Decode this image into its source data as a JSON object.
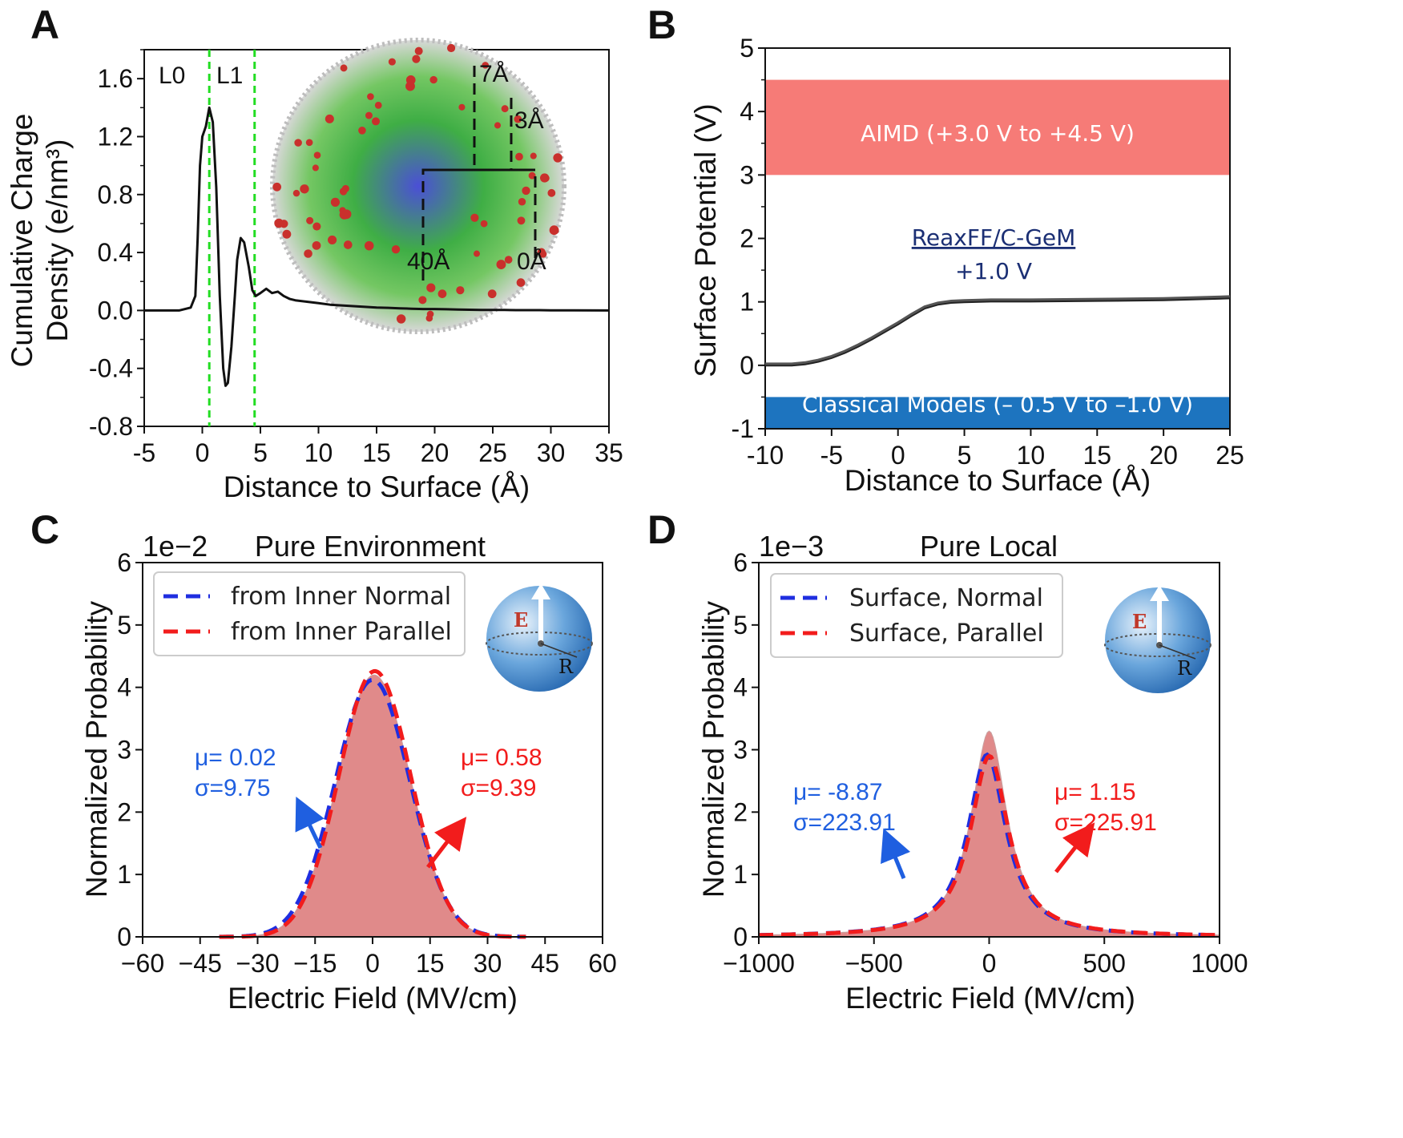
{
  "colors": {
    "blue": "#1f2ee0",
    "red": "#f21c1c",
    "green": "#22dd22",
    "fill_red": "#e08a8a",
    "aimd_band": "#f67b77",
    "classical_band": "#1d74bf",
    "reax_text": "#1b2f74"
  },
  "panels": {
    "A": {
      "letter": "A",
      "region_labels": [
        "L0",
        "L1"
      ],
      "inset_labels": [
        "7Å",
        "3Å",
        "40Å",
        "0Å"
      ],
      "inset_icon": "nanodroplet-molecular-render"
    },
    "B": {
      "letter": "B",
      "band_labels": [
        "AIMD (+3.0 V to +4.5 V)",
        "Classical Models (– 0.5 V to –1.0 V)"
      ],
      "reax_label": [
        "ReaxFF/C-GeM",
        "+1.0 V"
      ]
    },
    "C": {
      "letter": "C",
      "scale": "1e−2",
      "icon": "sphere-field-icon",
      "sphere_labels": [
        "E",
        "R"
      ]
    },
    "D": {
      "letter": "D",
      "scale": "1e−3",
      "icon": "sphere-field-icon",
      "sphere_labels": [
        "E",
        "R"
      ]
    }
  },
  "chart_data": [
    {
      "panel": "A",
      "type": "line",
      "title": "",
      "xlabel": "Distance to Surface (Å)",
      "ylabel": [
        "Cumulative Charge",
        "Density (e/nm³)"
      ],
      "xlim": [
        -5,
        35
      ],
      "ylim": [
        -0.8,
        1.8
      ],
      "xticks": [
        "-5",
        "0",
        "5",
        "10",
        "15",
        "20",
        "25",
        "30",
        "35"
      ],
      "yticks": [
        "-0.8",
        "-0.4",
        "0.0",
        "0.4",
        "0.8",
        "1.2",
        "1.6"
      ],
      "vlines": [
        0.6,
        4.5
      ],
      "series": [
        {
          "name": "Cumulative Charge Density",
          "x": [
            -5,
            -2,
            -1,
            -0.6,
            -0.4,
            -0.2,
            0,
            0.3,
            0.6,
            0.9,
            1.2,
            1.5,
            1.8,
            2.0,
            2.2,
            2.5,
            2.8,
            3.0,
            3.3,
            3.6,
            4.0,
            4.3,
            4.6,
            5.0,
            5.5,
            6.0,
            6.5,
            7.0,
            7.5,
            8,
            9,
            10,
            11,
            12,
            13,
            14,
            15,
            16,
            17,
            18,
            19,
            20,
            21,
            22,
            23,
            24,
            25,
            26,
            27,
            28,
            29,
            30,
            32,
            35
          ],
          "y": [
            0.0,
            0.0,
            0.02,
            0.1,
            0.5,
            1.0,
            1.2,
            1.27,
            1.4,
            1.3,
            0.85,
            0.1,
            -0.4,
            -0.52,
            -0.5,
            -0.25,
            0.1,
            0.35,
            0.5,
            0.47,
            0.3,
            0.14,
            0.1,
            0.12,
            0.15,
            0.12,
            0.13,
            0.1,
            0.08,
            0.07,
            0.06,
            0.05,
            0.04,
            0.035,
            0.03,
            0.025,
            0.02,
            0.018,
            0.015,
            0.012,
            0.01,
            0.01,
            0.008,
            0.006,
            0.005,
            0.004,
            0.003,
            0.003,
            0.002,
            0.002,
            0.002,
            0.001,
            0.001,
            0.0
          ]
        }
      ]
    },
    {
      "panel": "B",
      "type": "line",
      "title": "",
      "xlabel": "Distance to Surface (Å)",
      "ylabel": "Surface Potential (V)",
      "xlim": [
        -10,
        25
      ],
      "ylim": [
        -1,
        5
      ],
      "xticks": [
        "-10",
        "-5",
        "0",
        "5",
        "10",
        "15",
        "20",
        "25"
      ],
      "yticks": [
        "-1",
        "0",
        "1",
        "2",
        "3",
        "4",
        "5"
      ],
      "bands": [
        {
          "name": "AIMD (+3.0 V to +4.5 V)",
          "ymin": 3.0,
          "ymax": 4.5
        },
        {
          "name": "Classical Models (– 0.5 V to –1.0 V)",
          "ymin": -1.0,
          "ymax": -0.5
        }
      ],
      "series": [
        {
          "name": "ReaxFF/C-GeM",
          "x": [
            -10,
            -8,
            -7,
            -6,
            -5,
            -4,
            -3,
            -2,
            -1,
            0,
            1,
            2,
            3,
            4,
            5,
            7,
            10,
            15,
            20,
            25
          ],
          "y": [
            0.0,
            0.0,
            0.02,
            0.06,
            0.12,
            0.2,
            0.3,
            0.41,
            0.53,
            0.65,
            0.78,
            0.9,
            0.96,
            0.99,
            1.0,
            1.01,
            1.01,
            1.02,
            1.03,
            1.06
          ]
        }
      ]
    },
    {
      "panel": "C",
      "type": "area",
      "title": "Pure Environment",
      "xlabel": "Electric Field (MV/cm)",
      "ylabel": "Normalized Probability",
      "xlim": [
        -60,
        60
      ],
      "ylim": [
        0,
        6
      ],
      "xticks": [
        "−60",
        "−45",
        "−30",
        "−15",
        "0",
        "15",
        "30",
        "45",
        "60"
      ],
      "yticks": [
        "0",
        "1",
        "2",
        "3",
        "4",
        "5",
        "6"
      ],
      "series": [
        {
          "name": "from Inner Normal",
          "style": "dashed-blue",
          "mu": 0.02,
          "sigma": 9.75,
          "peak": 4.12
        },
        {
          "name": "from Inner Parallel",
          "style": "dashed-red",
          "mu": 0.58,
          "sigma": 9.39,
          "peak": 4.26
        }
      ],
      "histogram": {
        "mu": 0.4,
        "sigma": 9.5,
        "peak": 4.2,
        "range": [
          -35,
          37
        ]
      },
      "annotations": [
        {
          "lines": [
            "μ= 0.02",
            "σ=9.75"
          ],
          "color": "blue"
        },
        {
          "lines": [
            "μ= 0.58",
            "σ=9.39"
          ],
          "color": "red"
        }
      ]
    },
    {
      "panel": "D",
      "type": "area",
      "title": "Pure Local",
      "xlabel": "Electric Field (MV/cm)",
      "ylabel": "Normalized Probability",
      "xlim": [
        -1000,
        1000
      ],
      "ylim": [
        0,
        6
      ],
      "xticks": [
        "−1000",
        "−500",
        "0",
        "500",
        "1000"
      ],
      "yticks": [
        "0",
        "1",
        "2",
        "3",
        "4",
        "5",
        "6"
      ],
      "series": [
        {
          "name": "Surface,  Normal",
          "style": "dashed-blue",
          "mu": -8.87,
          "sigma": 223.91,
          "peak": 2.92,
          "gamma": 100
        },
        {
          "name": "Surface,  Parallel",
          "style": "dashed-red",
          "mu": 1.15,
          "sigma": 225.91,
          "peak": 2.9,
          "gamma": 100
        }
      ],
      "histogram": {
        "mu": 0,
        "gamma": 95,
        "peak": 3.3,
        "range": [
          -1000,
          1000
        ]
      },
      "annotations": [
        {
          "lines": [
            "μ= -8.87",
            "σ=223.91"
          ],
          "color": "blue"
        },
        {
          "lines": [
            "μ= 1.15",
            "σ=225.91"
          ],
          "color": "red"
        }
      ]
    }
  ]
}
